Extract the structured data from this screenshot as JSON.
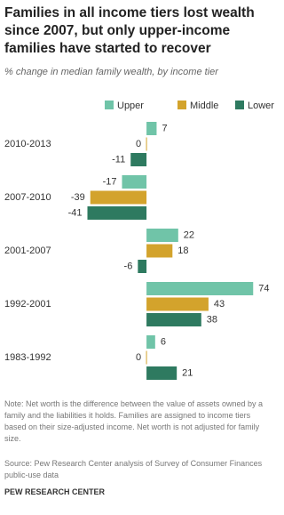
{
  "chart_data": {
    "type": "grouped-hbar",
    "title": "Families in all income tiers lost wealth since 2007, but only upper-income families have started to recover",
    "subtitle": "% change in median family wealth, by income tier",
    "categories": [
      "2010-2013",
      "2007-2010",
      "2001-2007",
      "1992-2001",
      "1983-1992"
    ],
    "series": [
      {
        "name": "Upper",
        "color": "#70c4a8",
        "values": [
          7,
          -17,
          22,
          74,
          6
        ]
      },
      {
        "name": "Middle",
        "color": "#d3a32c",
        "values": [
          0,
          -39,
          18,
          43,
          0
        ]
      },
      {
        "name": "Lower",
        "color": "#2e7a60",
        "values": [
          -11,
          -41,
          -6,
          38,
          21
        ]
      }
    ],
    "xlim": [
      -45,
      80
    ],
    "note": "Note: Net worth is the difference between the value of assets owned by a family and the liabilities it holds. Families are assigned to income tiers based on their size-adjusted income. Net worth is not adjusted for family size.",
    "source": "Source: Pew Research Center analysis of Survey of Consumer Finances public-use data",
    "brand": "PEW RESEARCH CENTER"
  }
}
